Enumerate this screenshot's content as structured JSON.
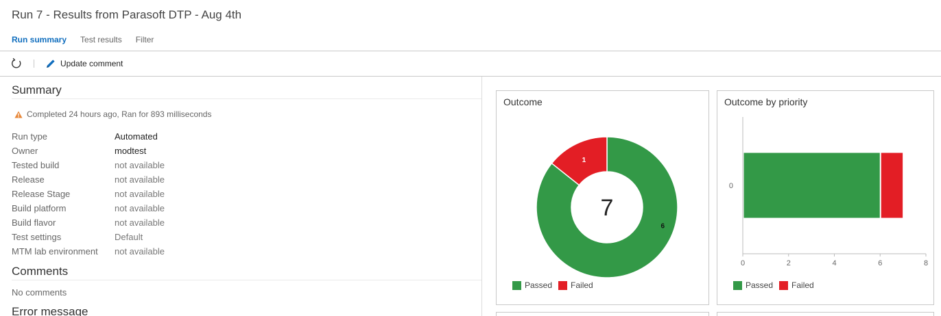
{
  "page": {
    "title": "Run 7 - Results from Parasoft DTP - Aug 4th"
  },
  "tabs": [
    {
      "label": "Run summary",
      "active": true
    },
    {
      "label": "Test results",
      "active": false
    },
    {
      "label": "Filter",
      "active": false
    }
  ],
  "toolbar": {
    "refresh_icon": "refresh-icon",
    "update_comment_label": "Update comment"
  },
  "summary": {
    "heading": "Summary",
    "status_text": "Completed 24 hours ago, Ran for 893 milliseconds",
    "properties": [
      {
        "key": "Run type",
        "value": "Automated",
        "emphasis": true
      },
      {
        "key": "Owner",
        "value": "modtest",
        "emphasis": true
      },
      {
        "key": "Tested build",
        "value": "not available",
        "emphasis": false
      },
      {
        "key": "Release",
        "value": "not available",
        "emphasis": false
      },
      {
        "key": "Release Stage",
        "value": "not available",
        "emphasis": false
      },
      {
        "key": "Build platform",
        "value": "not available",
        "emphasis": false
      },
      {
        "key": "Build flavor",
        "value": "not available",
        "emphasis": false
      },
      {
        "key": "Test settings",
        "value": "Default",
        "emphasis": false
      },
      {
        "key": "MTM lab environment",
        "value": "not available",
        "emphasis": false
      }
    ]
  },
  "comments": {
    "heading": "Comments",
    "text": "No comments"
  },
  "error": {
    "heading": "Error message"
  },
  "colors": {
    "passed": "#339947",
    "failed": "#e31e25",
    "accent": "#106ebe",
    "warning": "#e8883a"
  },
  "outcome_card": {
    "title": "Outcome",
    "total_label": "7",
    "legend": [
      {
        "name": "Passed"
      },
      {
        "name": "Failed"
      }
    ]
  },
  "priority_card": {
    "title": "Outcome by priority",
    "legend": [
      {
        "name": "Passed"
      },
      {
        "name": "Failed"
      }
    ]
  },
  "chart_data": [
    {
      "type": "pie",
      "title": "Outcome",
      "categories": [
        "Passed",
        "Failed"
      ],
      "values": [
        6,
        1
      ],
      "data_labels": [
        "6",
        "1"
      ],
      "center_label": "7",
      "legend": "bottom-left"
    },
    {
      "type": "bar",
      "orientation": "horizontal",
      "stacked": true,
      "title": "Outcome by priority",
      "categories": [
        "0"
      ],
      "series": [
        {
          "name": "Passed",
          "values": [
            6
          ]
        },
        {
          "name": "Failed",
          "values": [
            1
          ]
        }
      ],
      "xlim": [
        0,
        8
      ],
      "x_ticks": [
        0,
        2,
        4,
        6,
        8
      ],
      "legend": "bottom-left"
    }
  ]
}
